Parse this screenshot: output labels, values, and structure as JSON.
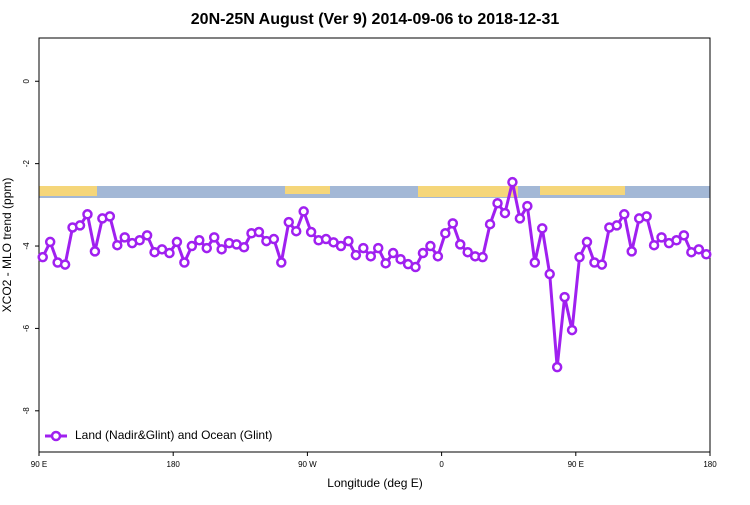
{
  "chart_data": {
    "type": "line",
    "title": "20N-25N August (Ver 9)   2014-09-06 to 2018-12-31",
    "x_label": "Longitude (deg E)",
    "y_label": "XCO2 - MLO trend (ppm)",
    "x": [
      92.5,
      97.5,
      102.5,
      107.5,
      112.5,
      117.5,
      122.5,
      127.5,
      132.5,
      137.5,
      142.5,
      147.5,
      152.5,
      157.5,
      162.5,
      167.5,
      172.5,
      177.5,
      182.5,
      187.5,
      192.5,
      197.5,
      202.5,
      207.5,
      212.5,
      217.5,
      222.5,
      227.5,
      232.5,
      237.5,
      242.5,
      247.5,
      252.5,
      257.5,
      262.5,
      267.5,
      272.5,
      277.5,
      282.5,
      287.5,
      292.5,
      297.5,
      302.5,
      307.5,
      312.5,
      317.5,
      322.5,
      327.5,
      332.5,
      337.5,
      342.5,
      347.5,
      352.5,
      357.5,
      362.5,
      367.5,
      372.5,
      377.5,
      382.5,
      387.5,
      392.5,
      397.5,
      402.5,
      407.5,
      412.5,
      417.5,
      422.5,
      427.5,
      432.5,
      437.5,
      442.5,
      447.5,
      452.5,
      457.5,
      462.5,
      467.5,
      472.5,
      477.5,
      482.5,
      487.5,
      492.5,
      497.5,
      502.5,
      507.5,
      512.5,
      517.5,
      522.5,
      527.5,
      532.5,
      537.5
    ],
    "series": [
      {
        "name": "Land (Nadir&Glint) and Ocean (Glint)",
        "color": "#a020f0",
        "values": [
          -4.27,
          -3.9,
          -4.4,
          -4.45,
          -3.55,
          -3.5,
          -3.23,
          -4.13,
          -3.33,
          -3.28,
          -3.98,
          -3.79,
          -3.93,
          -3.86,
          -3.74,
          -4.15,
          -4.08,
          -4.17,
          -3.9,
          -4.4,
          -4.0,
          -3.86,
          -4.05,
          -3.79,
          -4.08,
          -3.93,
          -3.96,
          -4.03,
          -3.69,
          -3.66,
          -3.88,
          -3.83,
          -4.4,
          -3.42,
          -3.64,
          -3.16,
          -3.66,
          -3.86,
          -3.83,
          -3.91,
          -4.0,
          -3.88,
          -4.22,
          -4.05,
          -4.25,
          -4.05,
          -4.42,
          -4.17,
          -4.32,
          -4.44,
          -4.51,
          -4.17,
          -4.0,
          -4.25,
          -3.69,
          -3.45,
          -3.96,
          -4.15,
          -4.25,
          -4.27,
          -3.47,
          -2.96,
          -3.2,
          -2.45,
          -3.33,
          -3.03,
          -4.4,
          -3.57,
          -4.68,
          -6.94,
          -5.24,
          -6.04,
          -4.27,
          -3.9,
          -4.4,
          -4.45,
          -3.55,
          -3.5,
          -3.23,
          -4.13,
          -3.33,
          -3.28,
          -3.98,
          -3.79,
          -3.93,
          -3.86,
          -3.74,
          -4.15,
          -4.08,
          -4.2
        ]
      }
    ],
    "xlim": [
      90,
      540
    ],
    "xticks": [
      {
        "value": 90,
        "label": "90 E"
      },
      180,
      {
        "value": 270,
        "label": "90 W"
      },
      {
        "value": 360,
        "label": "0"
      },
      {
        "value": 450,
        "label": "90 E"
      },
      {
        "value": 540,
        "label": "180"
      }
    ],
    "ylim": [
      -9,
      1.05
    ],
    "yticks": [
      0,
      -2,
      -4,
      -6,
      -8
    ],
    "legend_position": "bottom-left"
  }
}
